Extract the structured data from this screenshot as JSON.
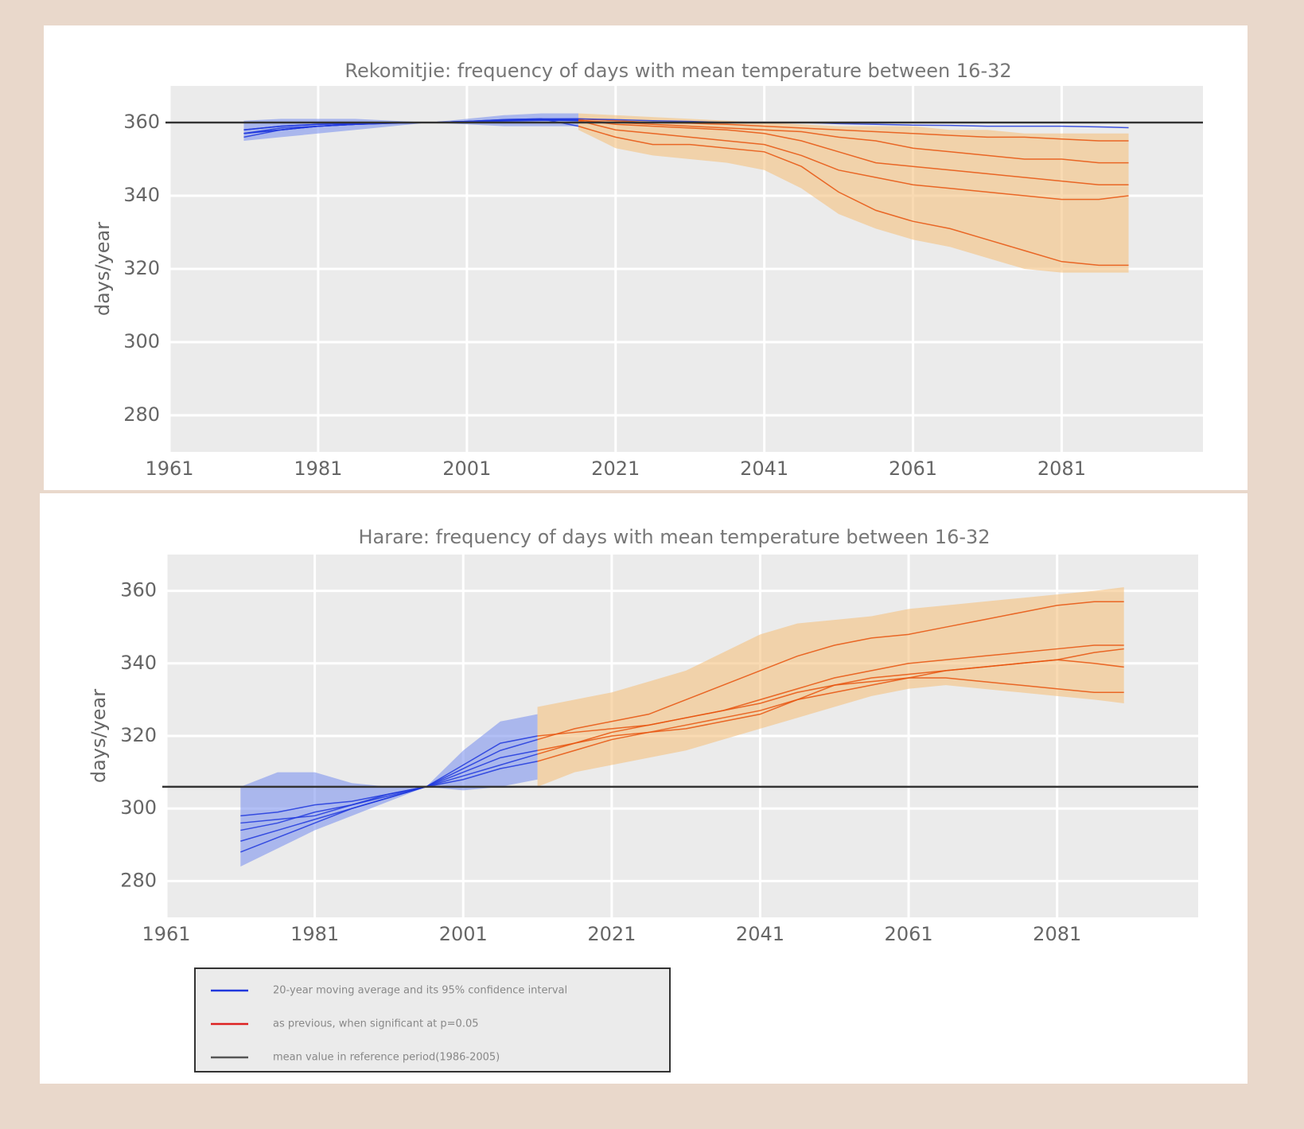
{
  "chart_data": [
    {
      "type": "line",
      "title": "Rekomitjie: frequency of days with mean temperature between 16-32",
      "y_label": "days/year",
      "xlim": [
        1961,
        2100
      ],
      "ylim": [
        270,
        370
      ],
      "xticks": [
        1961,
        1981,
        2001,
        2021,
        2041,
        2061,
        2081
      ],
      "yticks": [
        280,
        300,
        320,
        340,
        360
      ],
      "grid": true,
      "background": "#ebebeb",
      "hline": {
        "value": 360,
        "color": "#333333"
      },
      "x": [
        1971,
        1976,
        1981,
        1986,
        1991,
        1996,
        2001,
        2006,
        2011,
        2016,
        2021,
        2026,
        2031,
        2036,
        2041,
        2046,
        2051,
        2056,
        2061,
        2066,
        2071,
        2076,
        2081,
        2086,
        2090
      ],
      "bands": [
        {
          "color": "#7f95ee",
          "lower": [
            355,
            356,
            357,
            358,
            359,
            360,
            359.5,
            359,
            359,
            359,
            null,
            null,
            null,
            null,
            null,
            null,
            null,
            null,
            null,
            null,
            null,
            null,
            null,
            null,
            null
          ],
          "upper": [
            360.5,
            361,
            361,
            361,
            360.5,
            360,
            361,
            362,
            362.5,
            362.5,
            null,
            null,
            null,
            null,
            null,
            null,
            null,
            null,
            null,
            null,
            null,
            null,
            null,
            null,
            null
          ]
        },
        {
          "color": "#f5c27e",
          "lower": [
            null,
            null,
            null,
            null,
            null,
            null,
            null,
            null,
            null,
            358,
            353,
            351,
            350,
            349,
            347,
            342,
            335,
            331,
            328,
            326,
            323,
            320,
            319,
            319,
            319
          ],
          "upper": [
            null,
            null,
            null,
            null,
            null,
            null,
            null,
            null,
            null,
            362.5,
            362,
            361.5,
            361,
            360.5,
            360,
            359.5,
            359,
            359,
            359,
            358,
            358,
            357,
            357,
            357,
            357
          ]
        }
      ],
      "series": [
        {
          "color": "#2038dd",
          "values": [
            357,
            358,
            359,
            359.5,
            359.8,
            360,
            360.3,
            360.8,
            361,
            359,
            null,
            null,
            null,
            null,
            null,
            null,
            null,
            null,
            null,
            null,
            null,
            null,
            null,
            null,
            null
          ]
        },
        {
          "color": "#e8540e",
          "values": [
            null,
            null,
            null,
            null,
            null,
            null,
            null,
            null,
            null,
            359,
            356,
            354,
            354,
            353,
            352,
            348,
            341,
            336,
            333,
            331,
            328,
            325,
            322,
            321,
            321
          ]
        },
        {
          "color": "#2038dd",
          "values": [
            356,
            358,
            359,
            359.5,
            359.8,
            360,
            360.3,
            360.6,
            360.8,
            360.5,
            null,
            null,
            null,
            null,
            null,
            null,
            null,
            null,
            null,
            null,
            null,
            null,
            null,
            null,
            null
          ]
        },
        {
          "color": "#e8540e",
          "values": [
            null,
            null,
            null,
            null,
            null,
            null,
            null,
            null,
            null,
            360.5,
            358,
            357,
            356,
            355,
            354,
            351,
            347,
            345,
            343,
            342,
            341,
            340,
            339,
            339,
            340
          ]
        },
        {
          "color": "#2038dd",
          "values": [
            357,
            358,
            359,
            359.5,
            359.9,
            360,
            360.2,
            360.5,
            360.8,
            360.7,
            null,
            null,
            null,
            null,
            null,
            null,
            null,
            null,
            null,
            null,
            null,
            null,
            null,
            null,
            null
          ]
        },
        {
          "color": "#e8540e",
          "values": [
            null,
            null,
            null,
            null,
            null,
            null,
            null,
            null,
            null,
            360.7,
            359.5,
            359,
            358.5,
            358,
            357,
            355,
            352,
            349,
            348,
            347,
            346,
            345,
            344,
            343,
            343
          ]
        },
        {
          "color": "#2038dd",
          "values": [
            358,
            359,
            359.5,
            359.7,
            359.9,
            360,
            360.2,
            360.4,
            360.6,
            360.6,
            null,
            null,
            null,
            null,
            null,
            null,
            null,
            null,
            null,
            null,
            null,
            null,
            null,
            null,
            null
          ]
        },
        {
          "color": "#e8540e",
          "values": [
            null,
            null,
            null,
            null,
            null,
            null,
            null,
            null,
            null,
            360.6,
            360,
            359.5,
            359,
            358.5,
            358,
            357.5,
            356,
            355,
            353,
            352,
            351,
            350,
            350,
            349,
            349
          ]
        },
        {
          "color": "#2038dd",
          "values": [
            357,
            358.5,
            359,
            359.5,
            359.9,
            360,
            360.3,
            360.6,
            360.9,
            361,
            null,
            null,
            null,
            null,
            null,
            null,
            null,
            null,
            null,
            null,
            null,
            null,
            null,
            null,
            null
          ]
        },
        {
          "color": "#e8540e",
          "values": [
            null,
            null,
            null,
            null,
            null,
            null,
            null,
            null,
            null,
            361,
            360.5,
            360,
            359.8,
            359.5,
            359,
            358.5,
            358,
            357.5,
            357,
            356.5,
            356,
            356,
            355.5,
            355,
            355
          ]
        },
        {
          "color": "#2038dd",
          "values": [
            358,
            359,
            359.5,
            359.8,
            360,
            360,
            360.3,
            360.8,
            361,
            361,
            360.8,
            360.5,
            360.3,
            360,
            360,
            360,
            359.7,
            359.5,
            359.3,
            359.2,
            359,
            359,
            359,
            358.8,
            358.6
          ]
        }
      ]
    },
    {
      "type": "line",
      "title": "Harare: frequency of days with mean temperature between 16-32",
      "y_label": "days/year",
      "xlim": [
        1961,
        2100
      ],
      "ylim": [
        270,
        370
      ],
      "xticks": [
        1961,
        1981,
        2001,
        2021,
        2041,
        2061,
        2081
      ],
      "yticks": [
        280,
        300,
        320,
        340,
        360
      ],
      "grid": true,
      "background": "#ebebeb",
      "hline": {
        "value": 306,
        "color": "#333333"
      },
      "x": [
        1971,
        1976,
        1981,
        1986,
        1991,
        1996,
        2001,
        2006,
        2011,
        2016,
        2021,
        2026,
        2031,
        2036,
        2041,
        2046,
        2051,
        2056,
        2061,
        2066,
        2071,
        2076,
        2081,
        2086,
        2090
      ],
      "bands": [
        {
          "color": "#f5c27e",
          "lower": [
            null,
            null,
            null,
            null,
            null,
            null,
            null,
            null,
            306,
            310,
            312,
            314,
            316,
            319,
            322,
            325,
            328,
            331,
            333,
            334,
            333,
            332,
            331,
            330,
            329
          ],
          "upper": [
            null,
            null,
            null,
            null,
            null,
            null,
            null,
            null,
            328,
            330,
            332,
            335,
            338,
            343,
            348,
            351,
            352,
            353,
            355,
            356,
            357,
            358,
            359,
            360,
            361
          ]
        },
        {
          "color": "#7f95ee",
          "lower": [
            284,
            289,
            294,
            298,
            302,
            306,
            305,
            306,
            308,
            null,
            null,
            null,
            null,
            null,
            null,
            null,
            null,
            null,
            null,
            null,
            null,
            null,
            null,
            null,
            null
          ],
          "upper": [
            306,
            310,
            310,
            307,
            306,
            306,
            316,
            324,
            326,
            null,
            null,
            null,
            null,
            null,
            null,
            null,
            null,
            null,
            null,
            null,
            null,
            null,
            null,
            null,
            null
          ]
        }
      ],
      "series": [
        {
          "color": "#2038dd",
          "values": [
            291,
            294,
            297,
            300,
            303,
            306,
            312,
            318,
            320,
            null,
            null,
            null,
            null,
            null,
            null,
            null,
            null,
            null,
            null,
            null,
            null,
            null,
            null,
            null,
            null
          ]
        },
        {
          "color": "#e8540e",
          "values": [
            null,
            null,
            null,
            null,
            null,
            null,
            null,
            null,
            320,
            321,
            322,
            323,
            325,
            327,
            330,
            333,
            336,
            338,
            340,
            341,
            342,
            343,
            344,
            345,
            345
          ]
        },
        {
          "color": "#2038dd",
          "values": [
            296,
            297,
            298,
            301,
            303.5,
            306,
            310,
            314,
            316,
            null,
            null,
            null,
            null,
            null,
            null,
            null,
            null,
            null,
            null,
            null,
            null,
            null,
            null,
            null,
            null
          ]
        },
        {
          "color": "#e8540e",
          "values": [
            null,
            null,
            null,
            null,
            null,
            null,
            null,
            null,
            316,
            318,
            320,
            321,
            322,
            324,
            326,
            330,
            334,
            336,
            337,
            338,
            339,
            340,
            341,
            343,
            344
          ]
        },
        {
          "color": "#2038dd",
          "values": [
            288,
            292,
            296,
            300,
            303,
            306,
            309,
            312,
            315,
            null,
            null,
            null,
            null,
            null,
            null,
            null,
            null,
            null,
            null,
            null,
            null,
            null,
            null,
            null,
            null
          ]
        },
        {
          "color": "#e8540e",
          "values": [
            null,
            null,
            null,
            null,
            null,
            null,
            null,
            null,
            315,
            318,
            321,
            323,
            325,
            327,
            329,
            332,
            334,
            335,
            336,
            336,
            335,
            334,
            333,
            332,
            332
          ]
        },
        {
          "color": "#2038dd",
          "values": [
            294,
            296,
            299,
            301,
            304,
            306,
            311,
            316,
            319,
            null,
            null,
            null,
            null,
            null,
            null,
            null,
            null,
            null,
            null,
            null,
            null,
            null,
            null,
            null,
            null
          ]
        },
        {
          "color": "#e8540e",
          "values": [
            null,
            null,
            null,
            null,
            null,
            null,
            null,
            null,
            319,
            322,
            324,
            326,
            330,
            334,
            338,
            342,
            345,
            347,
            348,
            350,
            352,
            354,
            356,
            357,
            357
          ]
        },
        {
          "color": "#2038dd",
          "values": [
            298,
            299,
            301,
            302,
            304,
            306,
            308,
            311,
            313,
            null,
            null,
            null,
            null,
            null,
            null,
            null,
            null,
            null,
            null,
            null,
            null,
            null,
            null,
            null,
            null
          ]
        },
        {
          "color": "#e8540e",
          "values": [
            null,
            null,
            null,
            null,
            null,
            null,
            null,
            null,
            313,
            316,
            319,
            321,
            323,
            325,
            327,
            330,
            332,
            334,
            336,
            338,
            339,
            340,
            341,
            340,
            339
          ]
        }
      ]
    }
  ],
  "legend": {
    "entries": [
      {
        "label": "20-year moving average and its 95% confidence interval",
        "color": "#2038dd"
      },
      {
        "label": "as previous, when significant at p=0.05",
        "color": "#dd2020"
      },
      {
        "label": "mean value in reference period(1986-2005)",
        "color": "#555555"
      }
    ]
  }
}
